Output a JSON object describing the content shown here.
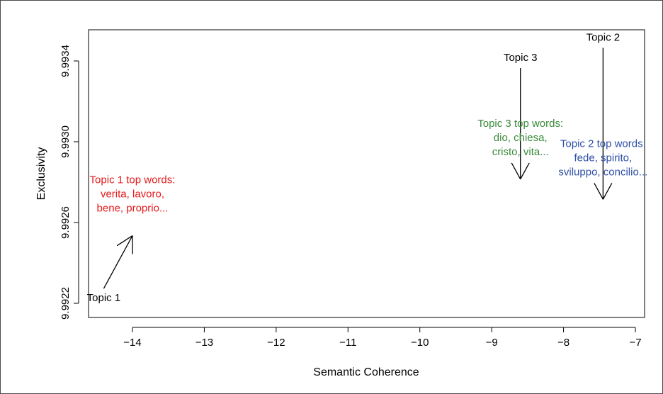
{
  "chart_data": {
    "type": "scatter",
    "xlabel": "Semantic Coherence",
    "ylabel": "Exclusivity",
    "xlim": [
      -14.6,
      -6.9
    ],
    "ylim": [
      9.99215,
      9.99357
    ],
    "x_ticks": [
      -14,
      -13,
      -12,
      -11,
      -10,
      -9,
      -8,
      -7
    ],
    "x_tick_labels": [
      "−14",
      "−13",
      "−12",
      "−11",
      "−10",
      "−9",
      "−8",
      "−7"
    ],
    "y_ticks": [
      9.9922,
      9.9926,
      9.993,
      9.9934
    ],
    "y_tick_labels": [
      "9.9922",
      "9.9926",
      "9.9930",
      "9.9934"
    ],
    "grid": false,
    "points": [
      {
        "label": "Topic 1",
        "x": -14.4,
        "y": 9.99221
      },
      {
        "label": "Topic 3",
        "x": -8.6,
        "y": 9.9934
      },
      {
        "label": "Topic 2",
        "x": -7.45,
        "y": 9.9935
      }
    ],
    "annotations": [
      {
        "lines": [
          "Topic 1 top words:",
          "verita, lavoro,",
          "bene, proprio..."
        ],
        "x": -14.0,
        "y": 9.99264,
        "color": "#e41a1c"
      },
      {
        "lines": [
          "Topic 3 top words:",
          "dio, chiesa,",
          "cristo, vita..."
        ],
        "x": -8.6,
        "y": 9.99292,
        "color": "#3a8a3a"
      },
      {
        "lines": [
          "Topic 2 top words:",
          "fede, spirito,",
          "sviluppo, concilio..."
        ],
        "x": -7.45,
        "y": 9.99282,
        "color": "#2e4fa6"
      }
    ]
  }
}
